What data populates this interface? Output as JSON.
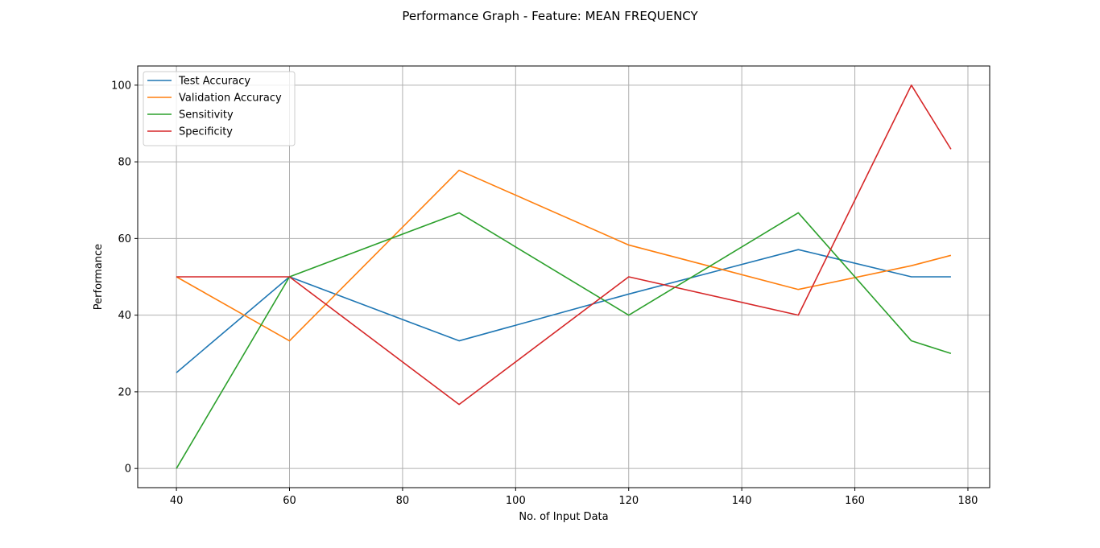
{
  "chart_data": {
    "type": "line",
    "title": "Performance Graph - Feature: MEAN FREQUENCY",
    "xlabel": "No. of Input Data",
    "ylabel": "Performance",
    "xlim": [
      33.15,
      183.85
    ],
    "ylim": [
      -5,
      105
    ],
    "xticks": [
      40,
      60,
      80,
      100,
      120,
      140,
      160,
      180
    ],
    "yticks": [
      0,
      20,
      40,
      60,
      80,
      100
    ],
    "grid": true,
    "legend_position": "upper left",
    "x": [
      40,
      60,
      90,
      120,
      150,
      170,
      177
    ],
    "series": [
      {
        "name": "Test Accuracy",
        "color": "#1f77b4",
        "values": [
          25,
          50,
          33.3,
          45.5,
          57.1,
          50,
          50
        ]
      },
      {
        "name": "Validation Accuracy",
        "color": "#ff7f0e",
        "values": [
          50,
          33.3,
          77.8,
          58.3,
          46.7,
          52.9,
          55.6
        ]
      },
      {
        "name": "Sensitivity",
        "color": "#2ca02c",
        "values": [
          0,
          50,
          66.7,
          40,
          66.7,
          33.3,
          30
        ]
      },
      {
        "name": "Specificity",
        "color": "#d62728",
        "values": [
          50,
          50,
          16.7,
          50,
          40,
          100,
          83.3
        ]
      }
    ]
  }
}
